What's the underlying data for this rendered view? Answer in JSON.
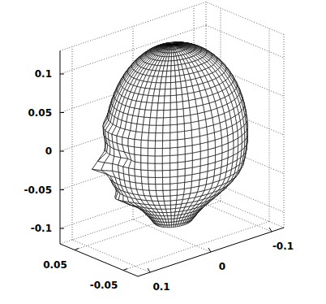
{
  "chart_data": {
    "type": "surface",
    "xlim": [
      -0.12,
      0.12
    ],
    "xticks": [
      -0.1,
      0,
      0.1
    ],
    "ylim": [
      -0.08,
      0.08
    ],
    "yticks": [
      -0.05,
      0.05
    ],
    "zlim": [
      -0.12,
      0.13
    ],
    "zticks": [
      -0.1,
      -0.05,
      0,
      0.05,
      0.1
    ],
    "grid": true
  }
}
